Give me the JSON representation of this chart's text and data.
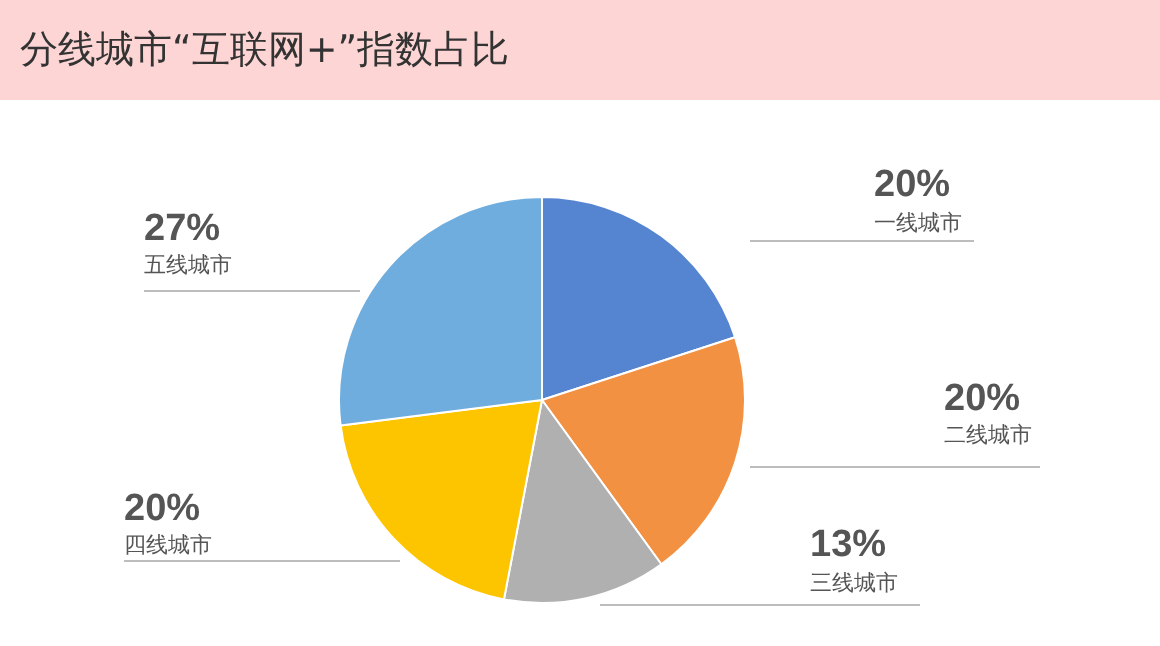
{
  "chart_data": {
    "type": "pie",
    "title": "分线城市“互联网+”指数占比",
    "categories": [
      "一线城市",
      "二线城市",
      "三线城市",
      "四线城市",
      "五线城市"
    ],
    "values": [
      20,
      20,
      13,
      20,
      27
    ],
    "value_labels": [
      "20%",
      "20%",
      "13%",
      "20%",
      "27%"
    ],
    "colors": [
      "#5585d0",
      "#f39143",
      "#b0b0b0",
      "#fdc500",
      "#6fadde"
    ]
  }
}
